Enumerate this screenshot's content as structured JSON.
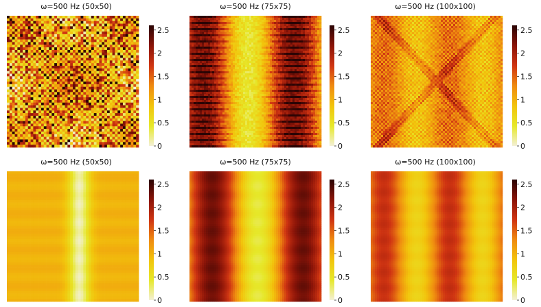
{
  "chart_data": [
    {
      "type": "heatmap",
      "title": "ω=500 Hz (50x50)",
      "pattern": "noisy-checker",
      "grid": 50,
      "colorbar": {
        "ticks": [
          "0",
          "0.5",
          "1",
          "1.5",
          "2",
          "2.5"
        ],
        "range": [
          0,
          2.6
        ]
      },
      "xlabel": "",
      "ylabel": ""
    },
    {
      "type": "heatmap",
      "title": "ω=500 Hz (75x75)",
      "pattern": "stripes-noisy",
      "grid": 75,
      "colorbar": {
        "ticks": [
          "0",
          "0.5",
          "1",
          "1.5",
          "2",
          "2.5"
        ],
        "range": [
          0,
          2.6
        ]
      },
      "xlabel": "",
      "ylabel": ""
    },
    {
      "type": "heatmap",
      "title": "ω=500 Hz (100x100)",
      "pattern": "stripes-noisy-diagonal",
      "grid": 100,
      "colorbar": {
        "ticks": [
          "0",
          "0.5",
          "1",
          "1.5",
          "2",
          "2.5"
        ],
        "range": [
          0,
          2.6
        ]
      },
      "xlabel": "",
      "ylabel": ""
    },
    {
      "type": "heatmap",
      "title": "ω=500 Hz (50x50)",
      "pattern": "smooth-single-band",
      "grid": 50,
      "colorbar": {
        "ticks": [
          "0",
          "0.5",
          "1",
          "1.5",
          "2",
          "2.5"
        ],
        "range": [
          0,
          2.6
        ]
      },
      "xlabel": "",
      "ylabel": ""
    },
    {
      "type": "heatmap",
      "title": "ω=500 Hz (75x75)",
      "pattern": "smooth-strong-bands",
      "grid": 75,
      "colorbar": {
        "ticks": [
          "0",
          "0.5",
          "1",
          "1.5",
          "2",
          "2.5"
        ],
        "range": [
          0,
          2.6
        ]
      },
      "xlabel": "",
      "ylabel": ""
    },
    {
      "type": "heatmap",
      "title": "ω=500 Hz (100x100)",
      "pattern": "smooth-medium-bands",
      "grid": 100,
      "colorbar": {
        "ticks": [
          "0",
          "0.5",
          "1",
          "1.5",
          "2",
          "2.5"
        ],
        "range": [
          0,
          2.6
        ]
      },
      "xlabel": "",
      "ylabel": ""
    }
  ],
  "colormap": [
    "#f3f0d6",
    "#e6e82a",
    "#f2c40c",
    "#ef8a10",
    "#cf3412",
    "#8a1408",
    "#2a0404"
  ]
}
